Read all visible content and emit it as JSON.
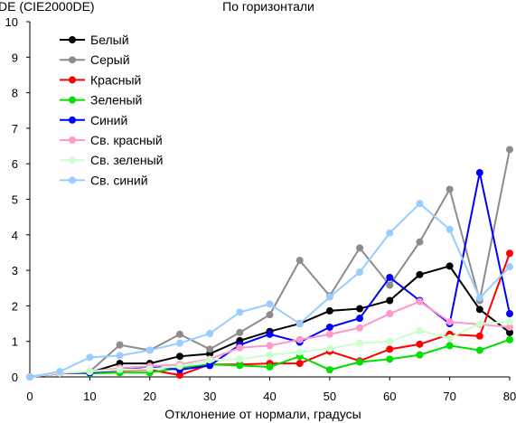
{
  "chart_data": {
    "type": "line",
    "title": "По горизонтали",
    "ylabel": "DE (CIE2000DE)",
    "xlabel": "Отклонение от нормали, градусы",
    "x": [
      0,
      5,
      10,
      15,
      20,
      25,
      30,
      35,
      40,
      45,
      50,
      55,
      60,
      65,
      70,
      75,
      80
    ],
    "xlim": [
      0,
      80
    ],
    "ylim": [
      0,
      10
    ],
    "xticks": [
      0,
      10,
      20,
      30,
      40,
      50,
      60,
      70,
      80
    ],
    "yticks": [
      0,
      1,
      2,
      3,
      4,
      5,
      6,
      7,
      8,
      9,
      10
    ],
    "grid": false,
    "legend_position": "top-left",
    "series": [
      {
        "name": "Белый",
        "color": "#000000",
        "values": [
          0,
          0.1,
          0.12,
          0.38,
          0.38,
          0.58,
          0.65,
          1.02,
          1.28,
          1.5,
          1.86,
          1.92,
          2.15,
          2.88,
          3.12,
          1.9,
          1.25
        ]
      },
      {
        "name": "Серый",
        "color": "#8c8c8c",
        "values": [
          0,
          0.1,
          0.15,
          0.9,
          0.75,
          1.2,
          0.78,
          1.25,
          1.75,
          3.28,
          2.28,
          3.63,
          2.58,
          3.8,
          5.28,
          2.15,
          6.4
        ]
      },
      {
        "name": "Красный",
        "color": "#ff0000",
        "values": [
          0,
          0.1,
          0.12,
          0.18,
          0.2,
          0.05,
          0.35,
          0.35,
          0.38,
          0.38,
          0.72,
          0.45,
          0.78,
          0.92,
          1.2,
          1.15,
          3.48
        ]
      },
      {
        "name": "Зеленый",
        "color": "#00dd00",
        "values": [
          0,
          0.12,
          0.1,
          0.12,
          0.12,
          0.25,
          0.35,
          0.32,
          0.28,
          0.58,
          0.2,
          0.42,
          0.5,
          0.62,
          0.88,
          0.75,
          1.05
        ]
      },
      {
        "name": "Синий",
        "color": "#0000ff",
        "values": [
          0,
          0.1,
          0.12,
          0.2,
          0.3,
          0.2,
          0.32,
          0.9,
          1.2,
          0.98,
          1.4,
          1.65,
          2.8,
          2.15,
          1.5,
          5.75,
          1.78
        ]
      },
      {
        "name": "Св. красный",
        "color": "#ff99cc",
        "values": [
          0,
          0.1,
          0.15,
          0.25,
          0.3,
          0.35,
          0.5,
          0.82,
          0.88,
          1.05,
          1.2,
          1.38,
          1.78,
          2.12,
          1.55,
          1.48,
          1.4
        ]
      },
      {
        "name": "Св. зеленый",
        "color": "#ccffcc",
        "values": [
          0,
          0.12,
          0.15,
          0.2,
          0.22,
          0.3,
          0.48,
          0.5,
          0.62,
          0.7,
          0.8,
          0.95,
          1.0,
          1.3,
          1.1,
          1.5,
          1.55
        ]
      },
      {
        "name": "Св. синий",
        "color": "#99ccff",
        "values": [
          0,
          0.15,
          0.55,
          0.6,
          0.75,
          0.95,
          1.22,
          1.82,
          2.05,
          1.5,
          2.25,
          2.95,
          4.05,
          4.88,
          4.15,
          2.22,
          3.1
        ]
      }
    ]
  }
}
